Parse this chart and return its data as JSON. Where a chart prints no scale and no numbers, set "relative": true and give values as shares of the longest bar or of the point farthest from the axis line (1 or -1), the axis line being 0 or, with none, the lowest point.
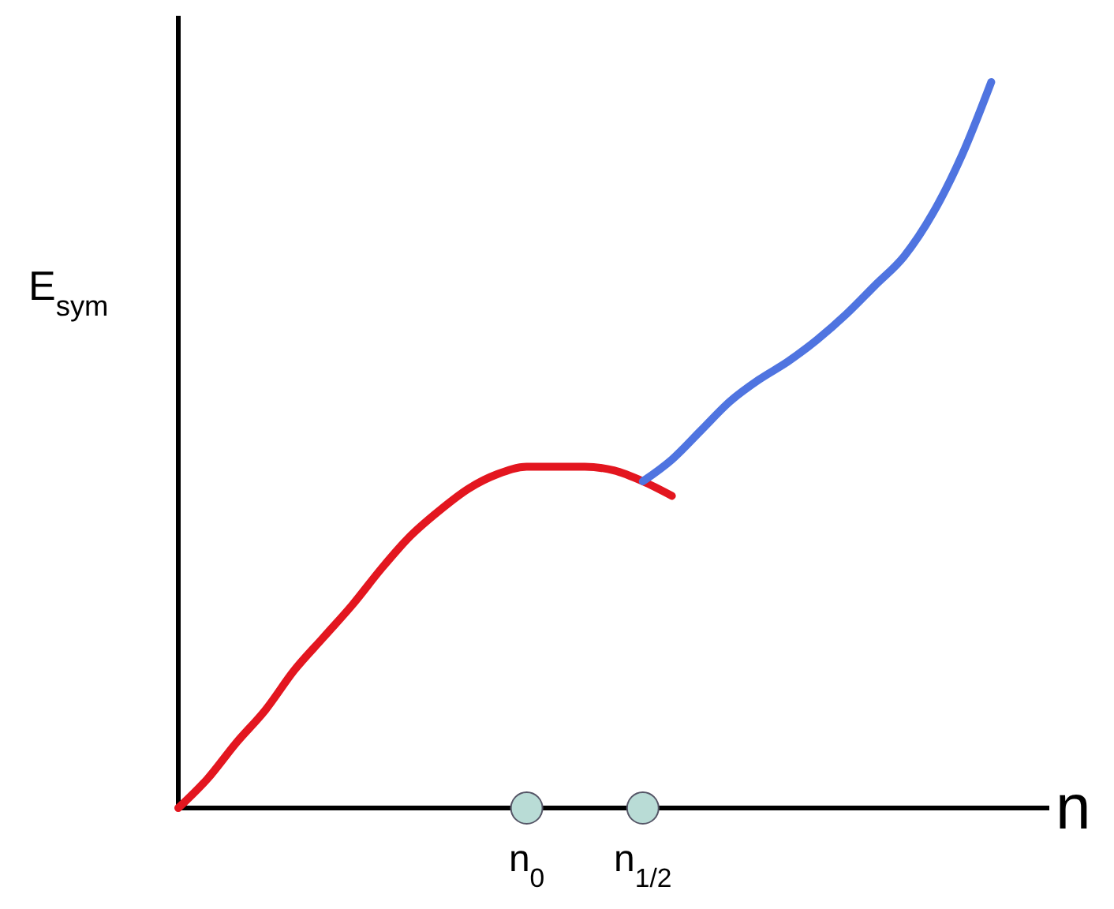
{
  "chart_data": {
    "type": "line",
    "relative": true,
    "xlabel": "n",
    "ylabel": "E$_{sym}$",
    "categories": [
      null,
      null,
      null,
      null,
      null,
      null,
      null,
      null,
      null,
      null,
      null,
      null,
      "n$_{0}$",
      null,
      null,
      null,
      "n$_{1/2}$",
      null,
      null,
      null,
      null,
      null,
      null,
      null,
      null,
      null,
      null,
      null,
      null,
      null,
      null
    ],
    "marker": "none",
    "line_style": "solid",
    "series": [
      {
        "color": "#e3161f",
        "values": [
          0,
          0.04,
          0.09,
          0.135,
          0.19,
          0.235,
          0.28,
          0.33,
          0.375,
          0.41,
          0.44,
          0.46,
          0.47,
          0.47,
          0.47,
          0.465,
          0.45,
          0.43,
          null,
          null,
          null,
          null,
          null,
          null,
          null,
          null,
          null,
          null,
          null,
          null,
          null
        ]
      },
      {
        "color": "#4f74e0",
        "values": [
          null,
          null,
          null,
          null,
          null,
          null,
          null,
          null,
          null,
          null,
          null,
          null,
          null,
          null,
          null,
          null,
          0.45,
          0.48,
          0.52,
          0.56,
          0.59,
          0.615,
          0.645,
          0.68,
          0.72,
          0.76,
          0.82,
          0.9,
          1.0,
          null,
          null
        ]
      },
      {
        "type": "scatter",
        "marker": "circle",
        "color": "#b9dcd6",
        "values": [
          null,
          null,
          null,
          null,
          null,
          null,
          null,
          null,
          null,
          null,
          null,
          null,
          0,
          null,
          null,
          null,
          0,
          null,
          null,
          null,
          null,
          null,
          null,
          null,
          null,
          null,
          null,
          null,
          null,
          null,
          null
        ]
      }
    ]
  }
}
